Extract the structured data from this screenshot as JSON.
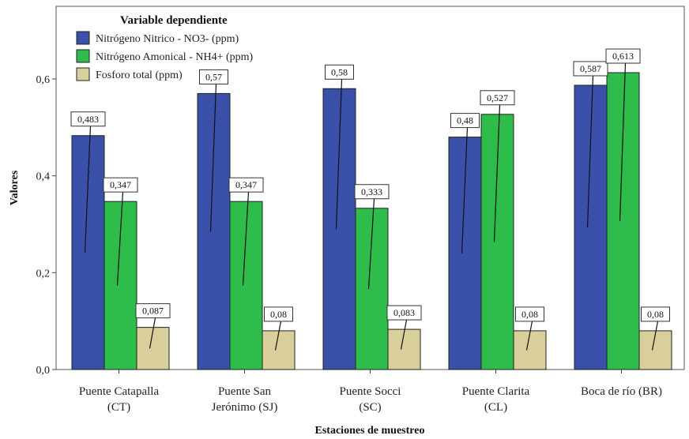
{
  "chart_data": {
    "type": "bar",
    "ylabel": "Valores",
    "xlabel": "Estaciones de muestreo",
    "ylim": [
      0,
      0.75
    ],
    "yticks": [
      "0,0",
      "0,2",
      "0,4",
      "0,6"
    ],
    "legend_title": "Variable dependiente",
    "legend_position": "top-left",
    "grid": false,
    "categories": [
      [
        "Puente Catapalla",
        "(CT)"
      ],
      [
        "Puente San",
        "Jerónimo (SJ)"
      ],
      [
        "Puente Socci",
        "(SC)"
      ],
      [
        "Puente Clarita",
        "(CL)"
      ],
      [
        "Boca de río (BR)",
        ""
      ]
    ],
    "series": [
      {
        "name": "Nitrógeno Nitrico - NO3- (ppm)",
        "color": "#3a4fa8",
        "values": [
          0.483,
          0.57,
          0.58,
          0.48,
          0.587
        ],
        "labels": [
          "0,483",
          "0,57",
          "0,58",
          "0,48",
          "0,587"
        ]
      },
      {
        "name": "Nitrógeno Amonical - NH4+ (ppm)",
        "color": "#2ebd4a",
        "values": [
          0.347,
          0.347,
          0.333,
          0.527,
          0.613
        ],
        "labels": [
          "0,347",
          "0,347",
          "0,333",
          "0,527",
          "0,613"
        ]
      },
      {
        "name": "Fosforo total (ppm)",
        "color": "#d8cf9a",
        "values": [
          0.087,
          0.08,
          0.083,
          0.08,
          0.08
        ],
        "labels": [
          "0,087",
          "0,08",
          "0,083",
          "0,08",
          "0,08"
        ]
      }
    ]
  }
}
